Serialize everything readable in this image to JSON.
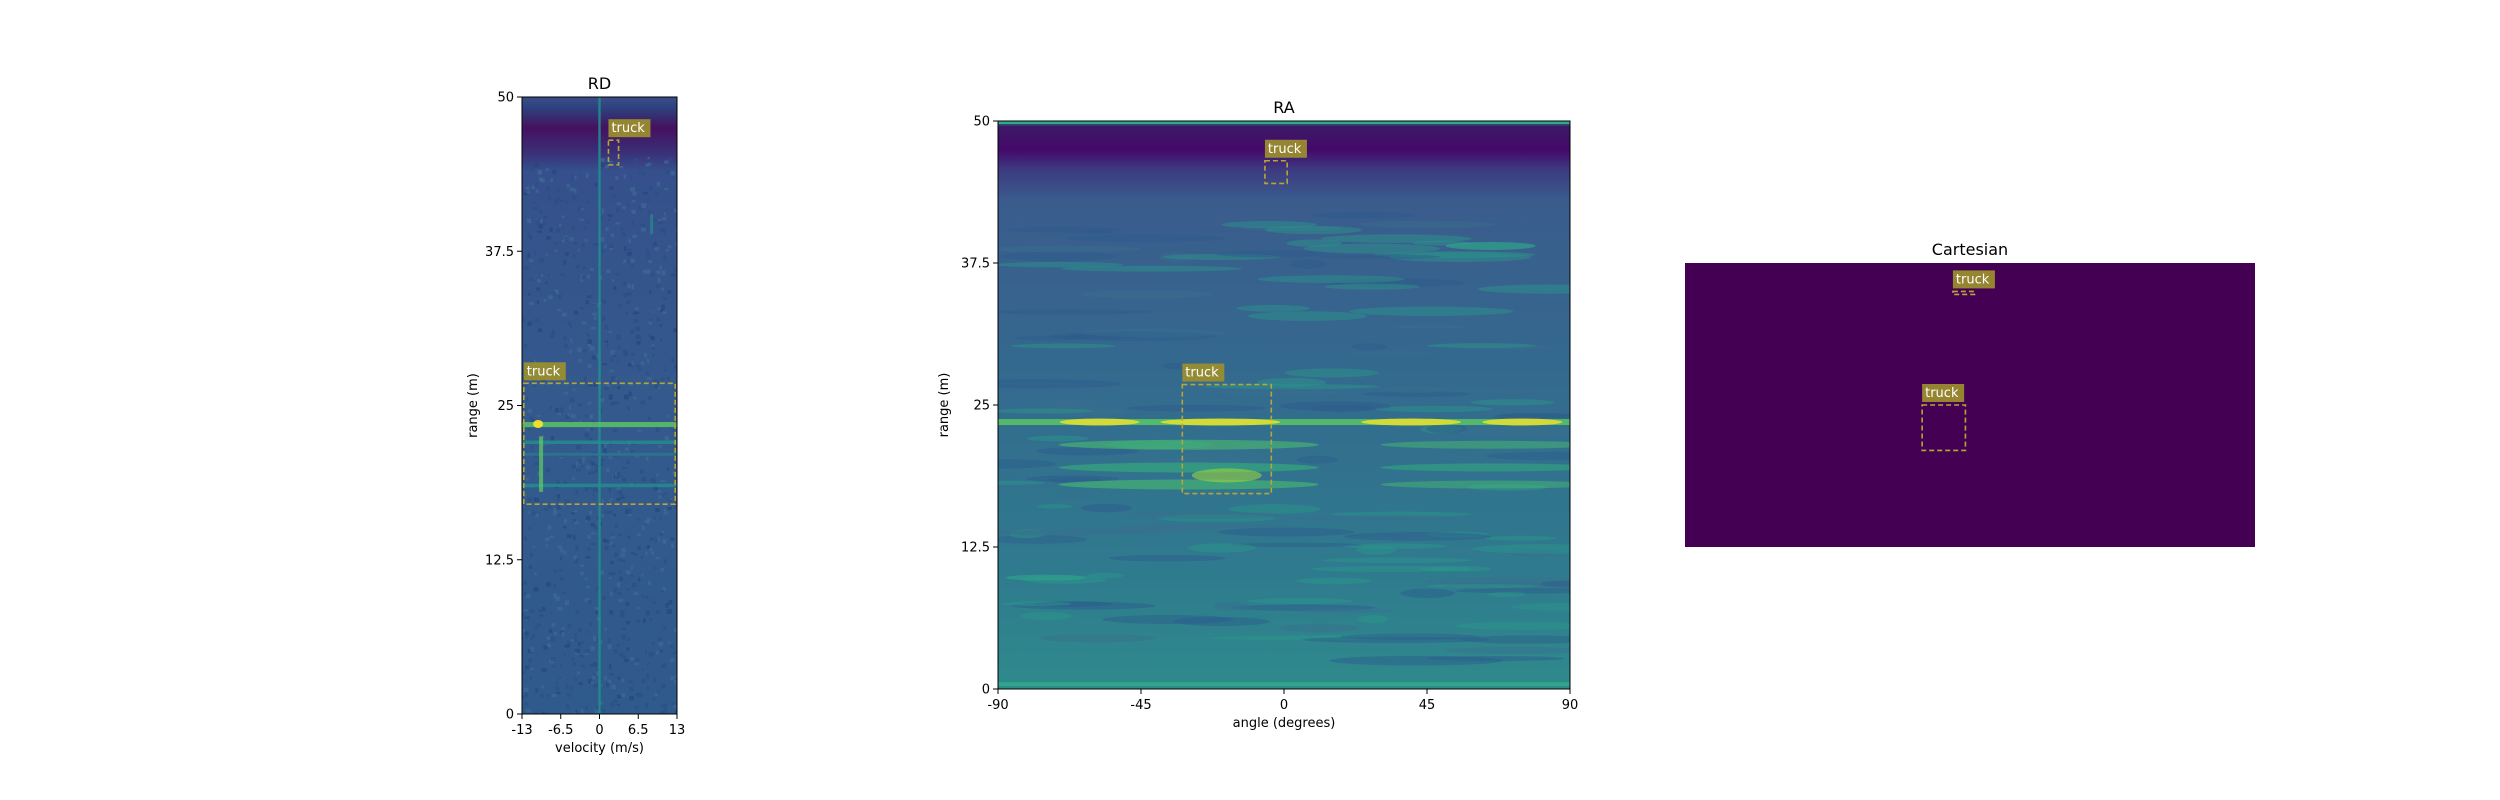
{
  "chart_data": [
    {
      "type": "heatmap",
      "title": "RD",
      "xlabel": "velocity (m/s)",
      "ylabel": "range (m)",
      "xlim": [
        -13,
        13
      ],
      "ylim": [
        0,
        50
      ],
      "xticks": [
        "-13",
        "-6.5",
        "0",
        "6.5",
        "13"
      ],
      "yticks": [
        "0",
        "12.5",
        "25",
        "37.5",
        "50"
      ],
      "colormap": "viridis",
      "boxes": [
        {
          "label": "truck",
          "x0": 1.5,
          "x1": 3.2,
          "y0": 44.5,
          "y1": 46.5
        },
        {
          "label": "truck",
          "x0": -12.7,
          "x1": 12.7,
          "y0": 17.0,
          "y1": 26.8
        }
      ]
    },
    {
      "type": "heatmap",
      "title": "RA",
      "xlabel": "angle (degrees)",
      "ylabel": "range (m)",
      "xlim": [
        -90,
        90
      ],
      "ylim": [
        0,
        50
      ],
      "xticks": [
        "-90",
        "-45",
        "0",
        "45",
        "90"
      ],
      "yticks": [
        "0",
        "12.5",
        "25",
        "37.5",
        "50"
      ],
      "colormap": "viridis",
      "boxes": [
        {
          "label": "truck",
          "x0": -6,
          "x1": 1,
          "y0": 44.5,
          "y1": 46.5
        },
        {
          "label": "truck",
          "x0": -32,
          "x1": -4,
          "y0": 17.2,
          "y1": 26.8
        }
      ]
    },
    {
      "type": "heatmap",
      "title": "Cartesian",
      "xlabel": "",
      "ylabel": "",
      "background": "#440154",
      "boxes": [
        {
          "label": "truck",
          "x0": 0.47,
          "x1": 0.508,
          "y0": 0.1,
          "y1": 0.105
        },
        {
          "label": "truck",
          "x0": 0.416,
          "x1": 0.492,
          "y0": 0.5,
          "y1": 0.66
        }
      ]
    }
  ],
  "colors": {
    "box": "#b8a535",
    "label_bg": "#9c8f2e",
    "viridis_dark": "#440154",
    "viridis_mid": "#3b528b",
    "viridis_teal": "#21918c",
    "viridis_green": "#5ec962",
    "viridis_yellow": "#fde725"
  }
}
